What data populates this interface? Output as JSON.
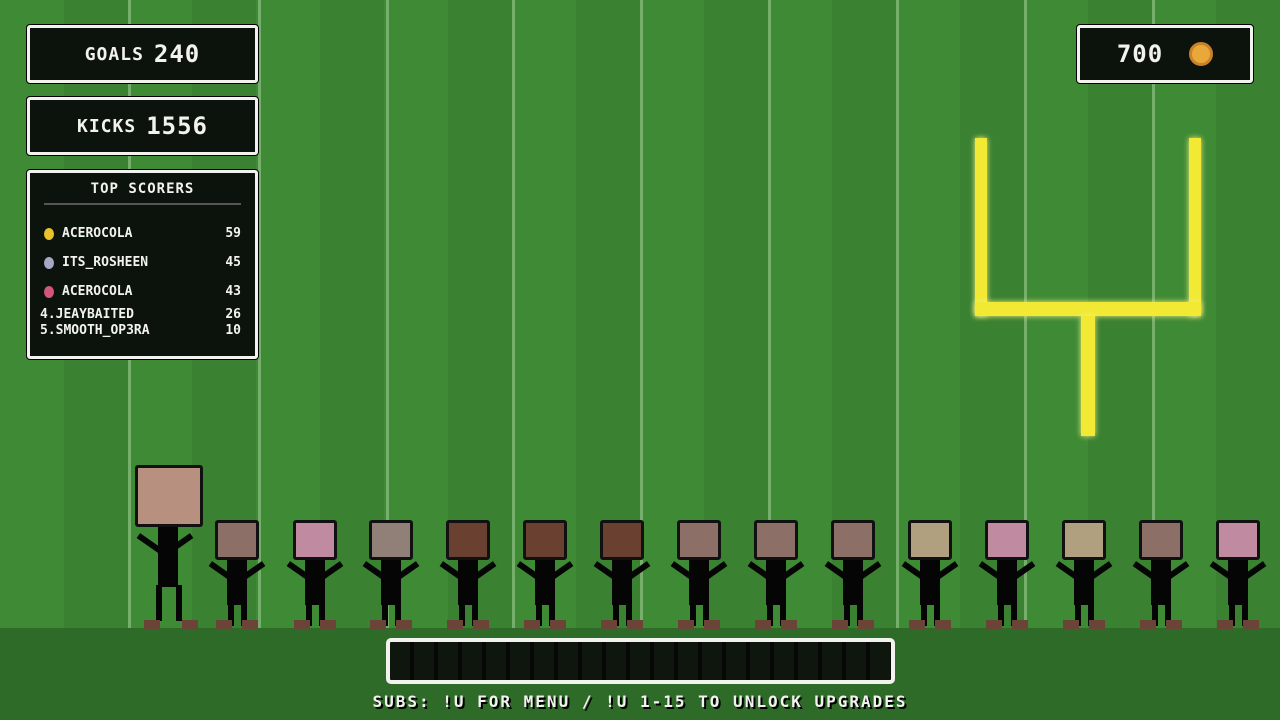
{
  "hud": {
    "goals_label": "GOALS",
    "goals": "240",
    "kicks_label": "KICKS",
    "kicks": "1556",
    "coins": "700",
    "coin_icon": "gold-coin-icon"
  },
  "scorers": {
    "title": "TOP SCORERS",
    "top": [
      {
        "name": "ACEROCOLA",
        "score": "59",
        "medal": "#e8c22a"
      },
      {
        "name": "ITS_ROSHEEN",
        "score": "45",
        "medal": "#a7a9c4"
      },
      {
        "name": "ACEROCOLA",
        "score": "43",
        "medal": "#d0567a"
      }
    ],
    "rest": [
      {
        "name": "4.JEAYBAITED",
        "score": "26"
      },
      {
        "name": "5.SMOOTH_OP3RA",
        "score": "10"
      }
    ]
  },
  "progress": {
    "value": 0
  },
  "footer": "SUBS: !U FOR MENU / !U 1-15 TO UNLOCK UPGRADES",
  "colors": {
    "field": "#3f8a35",
    "goalpost": "#f2e935",
    "panel": "#0c130c"
  }
}
